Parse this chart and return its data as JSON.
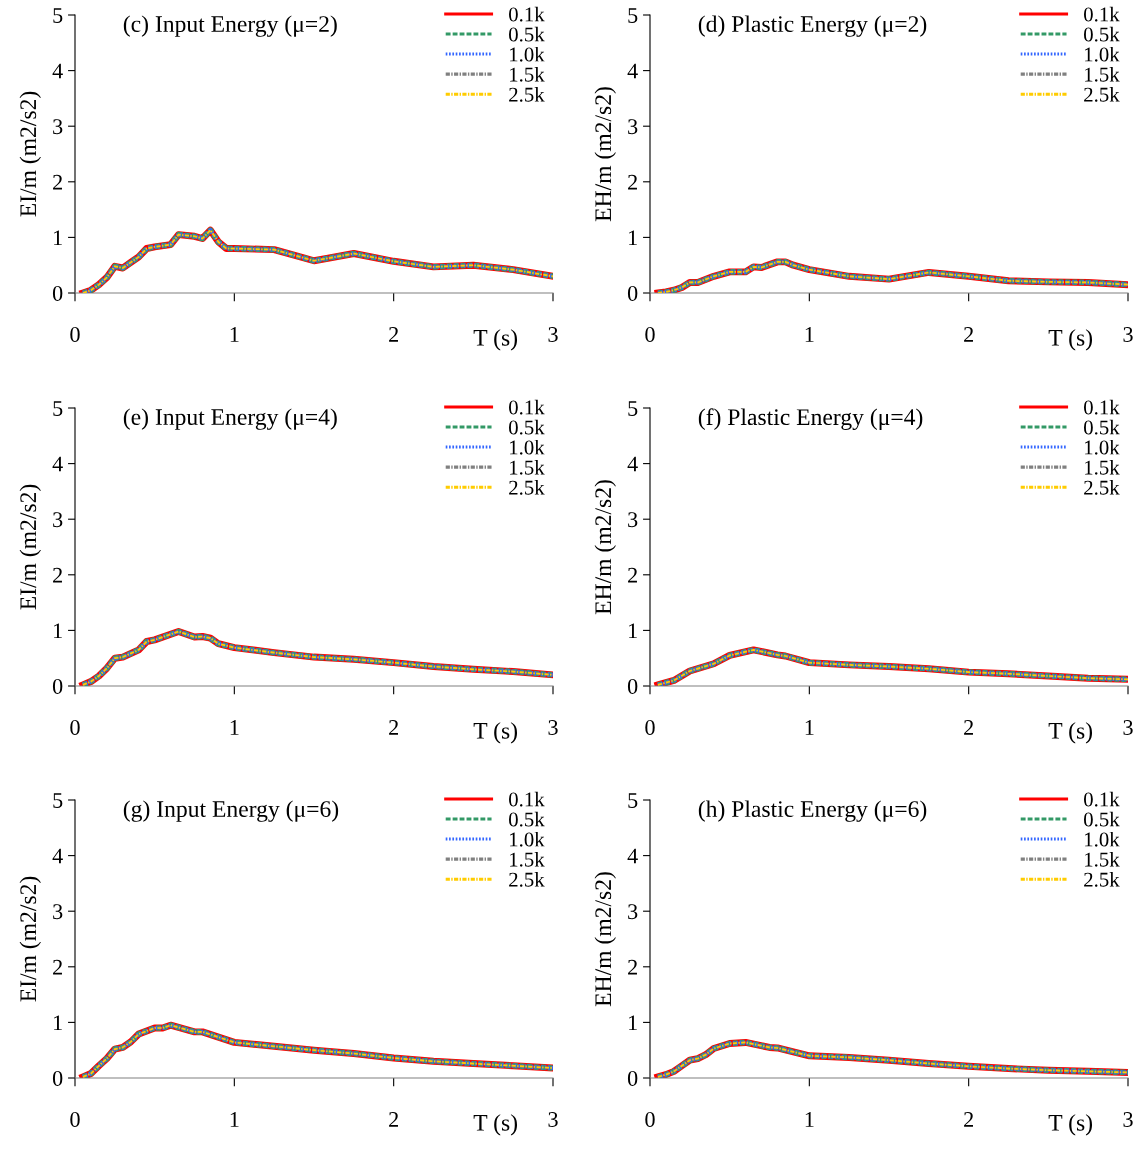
{
  "chart_data": [
    {
      "type": "line",
      "title": "(c) Input Energy (μ=2)",
      "xlabel": "T (s)",
      "ylabel": "EI/m (m2/s2)",
      "xlim": [
        0,
        3
      ],
      "ylim": [
        0,
        5
      ],
      "xticks": [
        0,
        1,
        2,
        3
      ],
      "yticks": [
        0,
        1,
        2,
        3,
        4,
        5
      ],
      "grid": false,
      "legend": "top right",
      "marker": "none",
      "x": [
        0.05,
        0.1,
        0.15,
        0.2,
        0.25,
        0.3,
        0.35,
        0.4,
        0.45,
        0.5,
        0.6,
        0.65,
        0.75,
        0.8,
        0.85,
        0.9,
        0.95,
        1.0,
        1.25,
        1.5,
        1.75,
        2.0,
        2.25,
        2.5,
        2.75,
        3.0
      ],
      "series": [
        {
          "name": "0.1k",
          "color": "#ff0000",
          "line_style": "solid",
          "values": [
            0,
            0.05,
            0.15,
            0.28,
            0.48,
            0.45,
            0.55,
            0.65,
            0.8,
            0.83,
            0.87,
            1.05,
            1.02,
            0.98,
            1.13,
            0.92,
            0.8,
            0.8,
            0.78,
            0.58,
            0.71,
            0.57,
            0.47,
            0.5,
            0.42,
            0.3
          ]
        },
        {
          "name": "0.5k",
          "color": "#339966",
          "line_style": "dashed",
          "values": [
            0,
            0.05,
            0.15,
            0.28,
            0.48,
            0.45,
            0.55,
            0.65,
            0.8,
            0.83,
            0.87,
            1.05,
            1.02,
            0.98,
            1.13,
            0.92,
            0.8,
            0.8,
            0.78,
            0.58,
            0.71,
            0.57,
            0.47,
            0.5,
            0.42,
            0.3
          ]
        },
        {
          "name": "1.0k",
          "color": "#3366ff",
          "line_style": "dotted",
          "values": [
            0,
            0.05,
            0.15,
            0.28,
            0.48,
            0.45,
            0.55,
            0.65,
            0.8,
            0.83,
            0.87,
            1.05,
            1.02,
            0.98,
            1.13,
            0.92,
            0.8,
            0.8,
            0.78,
            0.58,
            0.71,
            0.57,
            0.47,
            0.5,
            0.42,
            0.3
          ]
        },
        {
          "name": "1.5k",
          "color": "#808080",
          "line_style": "dashdot",
          "values": [
            0,
            0.05,
            0.15,
            0.28,
            0.48,
            0.45,
            0.55,
            0.65,
            0.8,
            0.83,
            0.87,
            1.05,
            1.02,
            0.98,
            1.13,
            0.92,
            0.8,
            0.8,
            0.78,
            0.58,
            0.71,
            0.57,
            0.47,
            0.5,
            0.42,
            0.3
          ]
        },
        {
          "name": "2.5k",
          "color": "#ffcc00",
          "line_style": "dashdot",
          "values": [
            0,
            0.05,
            0.15,
            0.28,
            0.48,
            0.45,
            0.55,
            0.65,
            0.8,
            0.83,
            0.87,
            1.05,
            1.02,
            0.98,
            1.13,
            0.92,
            0.8,
            0.8,
            0.78,
            0.58,
            0.71,
            0.57,
            0.47,
            0.5,
            0.42,
            0.3
          ]
        }
      ]
    },
    {
      "type": "line",
      "title": "(d) Plastic Energy (μ=2)",
      "xlabel": "T (s)",
      "ylabel": "EH/m (m2/s2)",
      "xlim": [
        0,
        3
      ],
      "ylim": [
        0,
        5
      ],
      "xticks": [
        0,
        1,
        2,
        3
      ],
      "yticks": [
        0,
        1,
        2,
        3,
        4,
        5
      ],
      "grid": false,
      "legend": "top right",
      "marker": "none",
      "x": [
        0.05,
        0.1,
        0.15,
        0.2,
        0.25,
        0.3,
        0.4,
        0.5,
        0.6,
        0.65,
        0.7,
        0.8,
        0.85,
        0.9,
        1.0,
        1.25,
        1.5,
        1.75,
        2.0,
        2.25,
        2.5,
        2.75,
        3.0
      ],
      "series": [
        {
          "name": "0.1k",
          "color": "#ff0000",
          "line_style": "solid",
          "values": [
            0,
            0.02,
            0.05,
            0.1,
            0.19,
            0.19,
            0.3,
            0.38,
            0.38,
            0.47,
            0.46,
            0.56,
            0.56,
            0.5,
            0.42,
            0.3,
            0.25,
            0.37,
            0.3,
            0.22,
            0.2,
            0.19,
            0.15
          ]
        },
        {
          "name": "0.5k",
          "color": "#339966",
          "line_style": "dashed",
          "values": [
            0,
            0.02,
            0.05,
            0.1,
            0.19,
            0.19,
            0.3,
            0.38,
            0.38,
            0.47,
            0.46,
            0.56,
            0.56,
            0.5,
            0.42,
            0.3,
            0.25,
            0.37,
            0.3,
            0.22,
            0.2,
            0.19,
            0.15
          ]
        },
        {
          "name": "1.0k",
          "color": "#3366ff",
          "line_style": "dotted",
          "values": [
            0,
            0.02,
            0.05,
            0.1,
            0.19,
            0.19,
            0.3,
            0.38,
            0.38,
            0.47,
            0.46,
            0.56,
            0.56,
            0.5,
            0.42,
            0.3,
            0.25,
            0.37,
            0.3,
            0.22,
            0.2,
            0.19,
            0.15
          ]
        },
        {
          "name": "1.5k",
          "color": "#808080",
          "line_style": "dashdot",
          "values": [
            0,
            0.02,
            0.05,
            0.1,
            0.19,
            0.19,
            0.3,
            0.38,
            0.38,
            0.47,
            0.46,
            0.56,
            0.56,
            0.5,
            0.42,
            0.3,
            0.25,
            0.37,
            0.3,
            0.22,
            0.2,
            0.19,
            0.15
          ]
        },
        {
          "name": "2.5k",
          "color": "#ffcc00",
          "line_style": "dashdot",
          "values": [
            0,
            0.02,
            0.05,
            0.1,
            0.19,
            0.19,
            0.3,
            0.38,
            0.38,
            0.47,
            0.46,
            0.56,
            0.56,
            0.5,
            0.42,
            0.3,
            0.25,
            0.37,
            0.3,
            0.22,
            0.2,
            0.19,
            0.15
          ]
        }
      ]
    },
    {
      "type": "line",
      "title": "(e) Input Energy (μ=4)",
      "xlabel": "T (s)",
      "ylabel": "EI/m (m2/s2)",
      "xlim": [
        0,
        3
      ],
      "ylim": [
        0,
        5
      ],
      "xticks": [
        0,
        1,
        2,
        3
      ],
      "yticks": [
        0,
        1,
        2,
        3,
        4,
        5
      ],
      "grid": false,
      "legend": "top right",
      "marker": "none",
      "x": [
        0.05,
        0.1,
        0.15,
        0.2,
        0.25,
        0.3,
        0.4,
        0.45,
        0.5,
        0.65,
        0.75,
        0.8,
        0.85,
        0.9,
        1.0,
        1.25,
        1.5,
        1.75,
        2.0,
        2.25,
        2.5,
        2.75,
        3.0
      ],
      "series": [
        {
          "name": "0.1k",
          "color": "#ff0000",
          "line_style": "solid",
          "values": [
            0.02,
            0.08,
            0.18,
            0.32,
            0.5,
            0.52,
            0.65,
            0.8,
            0.83,
            0.98,
            0.88,
            0.89,
            0.86,
            0.76,
            0.69,
            0.6,
            0.52,
            0.48,
            0.42,
            0.35,
            0.3,
            0.26,
            0.2
          ]
        },
        {
          "name": "0.5k",
          "color": "#339966",
          "line_style": "dashed",
          "values": [
            0.02,
            0.08,
            0.18,
            0.32,
            0.5,
            0.52,
            0.65,
            0.8,
            0.83,
            0.98,
            0.88,
            0.89,
            0.86,
            0.76,
            0.69,
            0.6,
            0.52,
            0.48,
            0.42,
            0.35,
            0.3,
            0.26,
            0.2
          ]
        },
        {
          "name": "1.0k",
          "color": "#3366ff",
          "line_style": "dotted",
          "values": [
            0.02,
            0.08,
            0.18,
            0.32,
            0.5,
            0.52,
            0.65,
            0.8,
            0.83,
            0.98,
            0.88,
            0.89,
            0.86,
            0.76,
            0.69,
            0.6,
            0.52,
            0.48,
            0.42,
            0.35,
            0.3,
            0.26,
            0.2
          ]
        },
        {
          "name": "1.5k",
          "color": "#808080",
          "line_style": "dashdot",
          "values": [
            0.02,
            0.08,
            0.18,
            0.32,
            0.5,
            0.52,
            0.65,
            0.8,
            0.83,
            0.98,
            0.88,
            0.89,
            0.86,
            0.76,
            0.69,
            0.6,
            0.52,
            0.48,
            0.42,
            0.35,
            0.3,
            0.26,
            0.2
          ]
        },
        {
          "name": "2.5k",
          "color": "#ffcc00",
          "line_style": "dashdot",
          "values": [
            0.02,
            0.08,
            0.18,
            0.32,
            0.5,
            0.52,
            0.65,
            0.8,
            0.83,
            0.98,
            0.88,
            0.89,
            0.86,
            0.76,
            0.69,
            0.6,
            0.52,
            0.48,
            0.42,
            0.35,
            0.3,
            0.26,
            0.2
          ]
        }
      ]
    },
    {
      "type": "line",
      "title": "(f) Plastic Energy (μ=4)",
      "xlabel": "T (s)",
      "ylabel": "EH/m (m2/s2)",
      "xlim": [
        0,
        3
      ],
      "ylim": [
        0,
        5
      ],
      "xticks": [
        0,
        1,
        2,
        3
      ],
      "yticks": [
        0,
        1,
        2,
        3,
        4,
        5
      ],
      "grid": false,
      "legend": "top right",
      "marker": "none",
      "x": [
        0.05,
        0.15,
        0.25,
        0.4,
        0.5,
        0.65,
        0.8,
        0.85,
        1.0,
        1.25,
        1.5,
        1.75,
        2.0,
        2.25,
        2.5,
        2.75,
        3.0
      ],
      "series": [
        {
          "name": "0.1k",
          "color": "#ff0000",
          "line_style": "solid",
          "values": [
            0.02,
            0.1,
            0.27,
            0.4,
            0.55,
            0.65,
            0.56,
            0.54,
            0.42,
            0.38,
            0.35,
            0.31,
            0.25,
            0.22,
            0.18,
            0.14,
            0.12
          ]
        },
        {
          "name": "0.5k",
          "color": "#339966",
          "line_style": "dashed",
          "values": [
            0.02,
            0.1,
            0.27,
            0.4,
            0.55,
            0.65,
            0.56,
            0.54,
            0.42,
            0.38,
            0.35,
            0.31,
            0.25,
            0.22,
            0.18,
            0.14,
            0.12
          ]
        },
        {
          "name": "1.0k",
          "color": "#3366ff",
          "line_style": "dotted",
          "values": [
            0.02,
            0.1,
            0.27,
            0.4,
            0.55,
            0.65,
            0.56,
            0.54,
            0.42,
            0.38,
            0.35,
            0.31,
            0.25,
            0.22,
            0.18,
            0.14,
            0.12
          ]
        },
        {
          "name": "1.5k",
          "color": "#808080",
          "line_style": "dashdot",
          "values": [
            0.02,
            0.1,
            0.27,
            0.4,
            0.55,
            0.65,
            0.56,
            0.54,
            0.42,
            0.38,
            0.35,
            0.31,
            0.25,
            0.22,
            0.18,
            0.14,
            0.12
          ]
        },
        {
          "name": "2.5k",
          "color": "#ffcc00",
          "line_style": "dashdot",
          "values": [
            0.02,
            0.1,
            0.27,
            0.4,
            0.55,
            0.65,
            0.56,
            0.54,
            0.42,
            0.38,
            0.35,
            0.31,
            0.25,
            0.22,
            0.18,
            0.14,
            0.12
          ]
        }
      ]
    },
    {
      "type": "line",
      "title": "(g) Input Energy (μ=6)",
      "xlabel": "T (s)",
      "ylabel": "EI/m (m2/s2)",
      "xlim": [
        0,
        3
      ],
      "ylim": [
        0,
        5
      ],
      "xticks": [
        0,
        1,
        2,
        3
      ],
      "yticks": [
        0,
        1,
        2,
        3,
        4,
        5
      ],
      "grid": false,
      "legend": "top right",
      "marker": "none",
      "x": [
        0.05,
        0.1,
        0.15,
        0.2,
        0.25,
        0.3,
        0.35,
        0.4,
        0.5,
        0.55,
        0.6,
        0.75,
        0.8,
        1.0,
        1.25,
        1.5,
        1.75,
        2.0,
        2.25,
        2.5,
        2.75,
        3.0
      ],
      "series": [
        {
          "name": "0.1k",
          "color": "#ff0000",
          "line_style": "solid",
          "values": [
            0.02,
            0.08,
            0.22,
            0.35,
            0.52,
            0.55,
            0.65,
            0.79,
            0.9,
            0.9,
            0.95,
            0.83,
            0.83,
            0.64,
            0.57,
            0.5,
            0.44,
            0.36,
            0.3,
            0.26,
            0.22,
            0.18
          ]
        },
        {
          "name": "0.5k",
          "color": "#339966",
          "line_style": "dashed",
          "values": [
            0.02,
            0.08,
            0.22,
            0.35,
            0.52,
            0.55,
            0.65,
            0.79,
            0.9,
            0.9,
            0.95,
            0.83,
            0.83,
            0.64,
            0.57,
            0.5,
            0.44,
            0.36,
            0.3,
            0.26,
            0.22,
            0.18
          ]
        },
        {
          "name": "1.0k",
          "color": "#3366ff",
          "line_style": "dotted",
          "values": [
            0.02,
            0.08,
            0.22,
            0.35,
            0.52,
            0.55,
            0.65,
            0.79,
            0.9,
            0.9,
            0.95,
            0.83,
            0.83,
            0.64,
            0.57,
            0.5,
            0.44,
            0.36,
            0.3,
            0.26,
            0.22,
            0.18
          ]
        },
        {
          "name": "1.5k",
          "color": "#808080",
          "line_style": "dashdot",
          "values": [
            0.02,
            0.08,
            0.22,
            0.35,
            0.52,
            0.55,
            0.65,
            0.79,
            0.9,
            0.9,
            0.95,
            0.83,
            0.83,
            0.64,
            0.57,
            0.5,
            0.44,
            0.36,
            0.3,
            0.26,
            0.22,
            0.18
          ]
        },
        {
          "name": "2.5k",
          "color": "#ffcc00",
          "line_style": "dashdot",
          "values": [
            0.02,
            0.08,
            0.22,
            0.35,
            0.52,
            0.55,
            0.65,
            0.79,
            0.9,
            0.9,
            0.95,
            0.83,
            0.83,
            0.64,
            0.57,
            0.5,
            0.44,
            0.36,
            0.3,
            0.26,
            0.22,
            0.18
          ]
        }
      ]
    },
    {
      "type": "line",
      "title": "(h) Plastic Energy (μ=6)",
      "xlabel": "T (s)",
      "ylabel": "EH/m (m2/s2)",
      "xlim": [
        0,
        3
      ],
      "ylim": [
        0,
        5
      ],
      "xticks": [
        0,
        1,
        2,
        3
      ],
      "yticks": [
        0,
        1,
        2,
        3,
        4,
        5
      ],
      "grid": false,
      "legend": "top right",
      "marker": "none",
      "x": [
        0.05,
        0.1,
        0.15,
        0.2,
        0.25,
        0.3,
        0.35,
        0.4,
        0.5,
        0.6,
        0.75,
        0.8,
        1.0,
        1.25,
        1.5,
        1.75,
        2.0,
        2.25,
        2.5,
        2.75,
        3.0
      ],
      "series": [
        {
          "name": "0.1k",
          "color": "#ff0000",
          "line_style": "solid",
          "values": [
            0.02,
            0.06,
            0.12,
            0.22,
            0.32,
            0.35,
            0.42,
            0.53,
            0.62,
            0.64,
            0.55,
            0.54,
            0.4,
            0.37,
            0.32,
            0.26,
            0.21,
            0.17,
            0.14,
            0.12,
            0.1
          ]
        },
        {
          "name": "0.5k",
          "color": "#339966",
          "line_style": "dashed",
          "values": [
            0.02,
            0.06,
            0.12,
            0.22,
            0.32,
            0.35,
            0.42,
            0.53,
            0.62,
            0.64,
            0.55,
            0.54,
            0.4,
            0.37,
            0.32,
            0.26,
            0.21,
            0.17,
            0.14,
            0.12,
            0.1
          ]
        },
        {
          "name": "1.0k",
          "color": "#3366ff",
          "line_style": "dotted",
          "values": [
            0.02,
            0.06,
            0.12,
            0.22,
            0.32,
            0.35,
            0.42,
            0.53,
            0.62,
            0.64,
            0.55,
            0.54,
            0.4,
            0.37,
            0.32,
            0.26,
            0.21,
            0.17,
            0.14,
            0.12,
            0.1
          ]
        },
        {
          "name": "1.5k",
          "color": "#808080",
          "line_style": "dashdot",
          "values": [
            0.02,
            0.06,
            0.12,
            0.22,
            0.32,
            0.35,
            0.42,
            0.53,
            0.62,
            0.64,
            0.55,
            0.54,
            0.4,
            0.37,
            0.32,
            0.26,
            0.21,
            0.17,
            0.14,
            0.12,
            0.1
          ]
        },
        {
          "name": "2.5k",
          "color": "#ffcc00",
          "line_style": "dashdot",
          "values": [
            0.02,
            0.06,
            0.12,
            0.22,
            0.32,
            0.35,
            0.42,
            0.53,
            0.62,
            0.64,
            0.55,
            0.54,
            0.4,
            0.37,
            0.32,
            0.26,
            0.21,
            0.17,
            0.14,
            0.12,
            0.1
          ]
        }
      ]
    }
  ]
}
